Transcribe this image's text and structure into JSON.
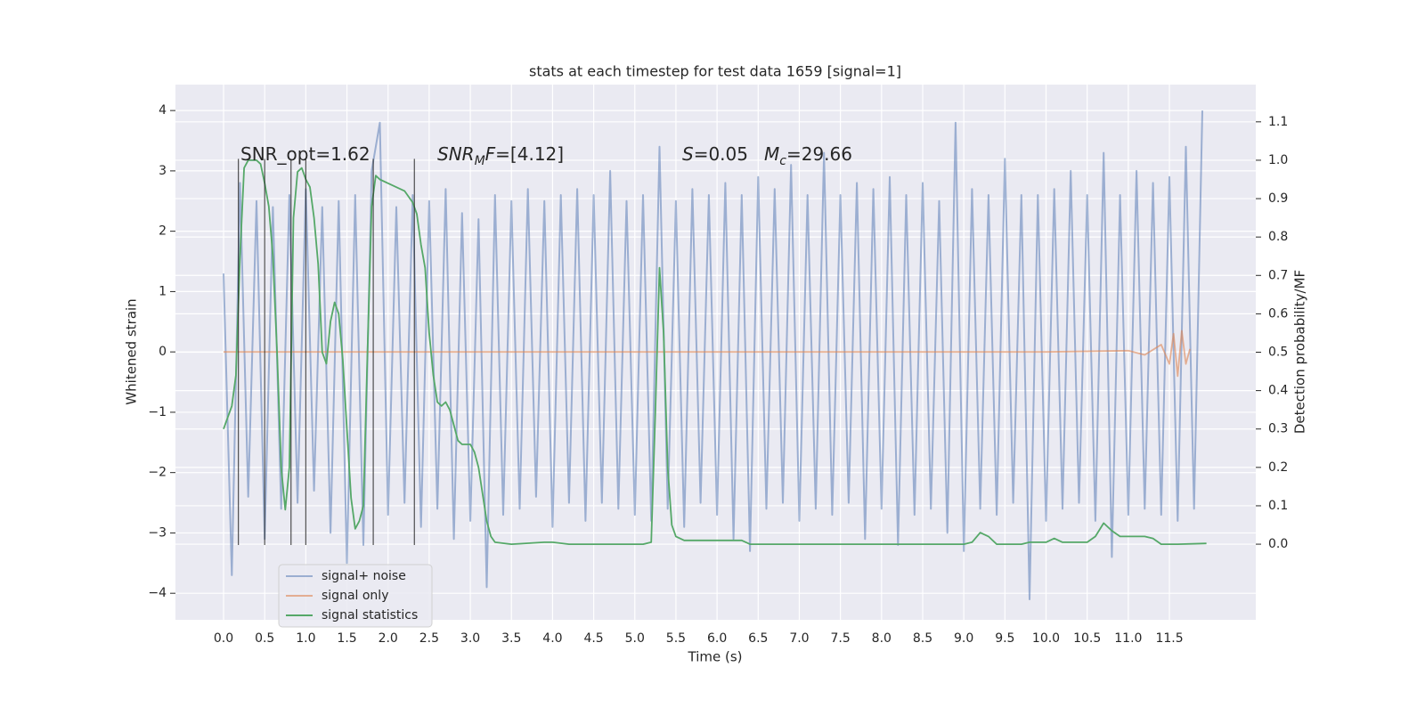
{
  "chart_data": {
    "type": "line",
    "title": "stats at each timestep for test data 1659 [signal=1]",
    "xlabel": "Time (s)",
    "ylabel": "Whitened strain",
    "y2label": "Detection probability/MF",
    "xlim": [
      -0.585,
      12.55
    ],
    "ylim": [
      -4.44,
      4.43
    ],
    "y2lim": [
      -0.197,
      1.197
    ],
    "xticks": [
      {
        "value": 0,
        "label": "0.0"
      },
      0.5,
      {
        "value": 1,
        "label": "1.0"
      },
      1.5,
      {
        "value": 2,
        "label": "2.0"
      },
      2.5,
      {
        "value": 3,
        "label": "3.0"
      },
      3.5,
      {
        "value": 4,
        "label": "4.0"
      },
      4.5,
      {
        "value": 5,
        "label": "5.0"
      },
      5.5,
      {
        "value": 6,
        "label": "6.0"
      },
      6.5,
      {
        "value": 7,
        "label": "7.0"
      },
      7.5,
      {
        "value": 8,
        "label": "8.0"
      },
      8.5,
      {
        "value": 9,
        "label": "9.0"
      },
      9.5,
      {
        "value": 10,
        "label": "10.0"
      },
      10.5,
      {
        "value": 11,
        "label": "11.0"
      },
      11.5
    ],
    "yticks": [
      {
        "value": -4,
        "label": "−4"
      },
      {
        "value": -3,
        "label": "−3"
      },
      {
        "value": -2,
        "label": "−2"
      },
      {
        "value": -1,
        "label": "−1"
      },
      0,
      1,
      2,
      3,
      4
    ],
    "y2ticks": [
      {
        "value": 0,
        "label": "0.0"
      },
      0.1,
      0.2,
      0.3,
      0.4,
      0.5,
      0.6,
      0.7,
      0.8,
      0.9,
      {
        "value": 1,
        "label": "1.0"
      },
      1.1
    ],
    "grid": true,
    "legend": "lower left",
    "series": [
      {
        "name": "signal+ noise",
        "color": "#4c72b0",
        "alpha": 0.5,
        "x": [
          0.0,
          0.1,
          0.2,
          0.3,
          0.4,
          0.5,
          0.6,
          0.7,
          0.8,
          0.9,
          1.0,
          1.1,
          1.2,
          1.3,
          1.4,
          1.5,
          1.6,
          1.7,
          1.8,
          1.9,
          2.0,
          2.1,
          2.2,
          2.3,
          2.4,
          2.5,
          2.6,
          2.7,
          2.8,
          2.9,
          3.0,
          3.1,
          3.2,
          3.3,
          3.4,
          3.5,
          3.6,
          3.7,
          3.8,
          3.9,
          4.0,
          4.1,
          4.2,
          4.3,
          4.4,
          4.5,
          4.6,
          4.7,
          4.8,
          4.9,
          5.0,
          5.1,
          5.2,
          5.3,
          5.4,
          5.5,
          5.6,
          5.7,
          5.8,
          5.9,
          6.0,
          6.1,
          6.2,
          6.3,
          6.4,
          6.5,
          6.6,
          6.7,
          6.8,
          6.9,
          7.0,
          7.1,
          7.2,
          7.3,
          7.4,
          7.5,
          7.6,
          7.7,
          7.8,
          7.9,
          8.0,
          8.1,
          8.2,
          8.3,
          8.4,
          8.5,
          8.6,
          8.7,
          8.8,
          8.9,
          9.0,
          9.1,
          9.2,
          9.3,
          9.4,
          9.5,
          9.6,
          9.7,
          9.8,
          9.9,
          10.0,
          10.1,
          10.2,
          10.3,
          10.4,
          10.5,
          10.6,
          10.7,
          10.8,
          10.9,
          11.0,
          11.1,
          11.2,
          11.3,
          11.4,
          11.5,
          11.6,
          11.7,
          11.8,
          11.9
        ],
        "values": [
          1.3,
          -3.7,
          2.8,
          -2.4,
          2.5,
          -3.1,
          2.4,
          -2.6,
          2.6,
          -2.5,
          2.7,
          -2.3,
          2.4,
          -3.0,
          2.5,
          -3.5,
          2.6,
          -3.2,
          3.0,
          3.8,
          -2.7,
          2.4,
          -2.5,
          2.6,
          -2.9,
          2.5,
          -2.6,
          2.7,
          -3.1,
          2.3,
          -2.8,
          2.2,
          -3.9,
          2.6,
          -2.7,
          2.5,
          -2.6,
          2.7,
          -2.4,
          2.5,
          -2.9,
          2.6,
          -2.5,
          2.7,
          -2.8,
          2.6,
          -2.5,
          3.0,
          -2.6,
          2.5,
          -2.7,
          2.6,
          -2.8,
          3.4,
          -2.6,
          2.5,
          -2.9,
          2.7,
          -2.5,
          2.6,
          -2.7,
          2.8,
          -3.1,
          2.6,
          -3.3,
          2.9,
          -2.6,
          2.7,
          -2.5,
          3.1,
          -2.8,
          2.6,
          -2.6,
          3.3,
          -2.7,
          2.6,
          -2.5,
          2.8,
          -3.1,
          2.7,
          -2.6,
          2.9,
          -3.2,
          2.6,
          -2.7,
          2.8,
          -2.6,
          2.5,
          -3.0,
          3.8,
          -3.3,
          2.7,
          -2.6,
          2.6,
          -2.7,
          3.2,
          -2.5,
          2.6,
          -4.1,
          2.6,
          -2.8,
          2.7,
          -2.6,
          3.0,
          -2.5,
          2.6,
          -2.8,
          3.3,
          -3.4,
          2.6,
          -2.7,
          3.0,
          -2.6,
          2.8,
          -2.7,
          2.9,
          -2.8,
          3.4,
          -2.6,
          4.0
        ]
      },
      {
        "name": "signal only",
        "color": "#dd8452",
        "alpha": 0.6,
        "x": [
          0,
          5,
          10,
          11.0,
          11.2,
          11.4,
          11.5,
          11.55,
          11.6,
          11.65,
          11.7,
          11.75
        ],
        "values": [
          0,
          0,
          0,
          0.02,
          -0.05,
          0.12,
          -0.2,
          0.3,
          -0.4,
          0.35,
          -0.2,
          0.05
        ]
      },
      {
        "name": "signal statistics",
        "color": "#55a868",
        "alpha": 1,
        "axis": "y2",
        "x": [
          0.0,
          0.1,
          0.15,
          0.2,
          0.25,
          0.3,
          0.4,
          0.45,
          0.5,
          0.55,
          0.6,
          0.65,
          0.7,
          0.75,
          0.8,
          0.85,
          0.9,
          0.95,
          1.0,
          1.05,
          1.1,
          1.15,
          1.2,
          1.25,
          1.3,
          1.35,
          1.4,
          1.45,
          1.5,
          1.55,
          1.6,
          1.65,
          1.7,
          1.75,
          1.8,
          1.85,
          1.9,
          2.0,
          2.2,
          2.3,
          2.35,
          2.4,
          2.45,
          2.5,
          2.55,
          2.6,
          2.65,
          2.7,
          2.75,
          2.8,
          2.85,
          2.9,
          3.0,
          3.05,
          3.1,
          3.15,
          3.2,
          3.25,
          3.3,
          3.5,
          3.9,
          4.0,
          4.2,
          5.1,
          5.2,
          5.25,
          5.3,
          5.35,
          5.4,
          5.45,
          5.5,
          5.6,
          6.0,
          6.2,
          6.3,
          6.4,
          7.0,
          7.5,
          9.0,
          9.1,
          9.2,
          9.3,
          9.4,
          9.7,
          9.8,
          10.0,
          10.1,
          10.2,
          10.5,
          10.6,
          10.7,
          10.8,
          10.9,
          11.2,
          11.3,
          11.4,
          11.6,
          11.95
        ],
        "values": [
          0.3,
          0.36,
          0.44,
          0.75,
          0.98,
          1.0,
          1.0,
          0.99,
          0.94,
          0.88,
          0.75,
          0.5,
          0.2,
          0.09,
          0.2,
          0.85,
          0.97,
          0.98,
          0.95,
          0.93,
          0.85,
          0.73,
          0.5,
          0.47,
          0.58,
          0.63,
          0.6,
          0.48,
          0.3,
          0.12,
          0.04,
          0.06,
          0.1,
          0.5,
          0.88,
          0.96,
          0.95,
          0.94,
          0.92,
          0.89,
          0.86,
          0.78,
          0.72,
          0.55,
          0.44,
          0.37,
          0.36,
          0.37,
          0.35,
          0.31,
          0.27,
          0.26,
          0.26,
          0.24,
          0.2,
          0.13,
          0.06,
          0.02,
          0.005,
          0.0,
          0.005,
          0.005,
          0.0,
          0.0,
          0.005,
          0.35,
          0.72,
          0.55,
          0.2,
          0.05,
          0.02,
          0.01,
          0.01,
          0.01,
          0.01,
          0.0,
          0.0,
          0.0,
          0.0,
          0.005,
          0.03,
          0.02,
          0.0,
          0.0,
          0.005,
          0.005,
          0.015,
          0.005,
          0.005,
          0.02,
          0.055,
          0.035,
          0.02,
          0.02,
          0.015,
          0.0,
          0.0,
          0.002
        ]
      }
    ],
    "vlines": {
      "x": [
        0.18,
        0.5,
        0.82,
        1.0,
        1.82,
        2.32
      ],
      "ymin": -3.2,
      "ymax": 3.2,
      "color": "#262626"
    },
    "annotations": [
      [
        "SNR_opt=1.62"
      ],
      [
        "SNR",
        "M",
        "F",
        "=[4.12]"
      ],
      [
        "S",
        "=0.05"
      ],
      [
        "M",
        "c",
        "=29.66"
      ]
    ]
  }
}
